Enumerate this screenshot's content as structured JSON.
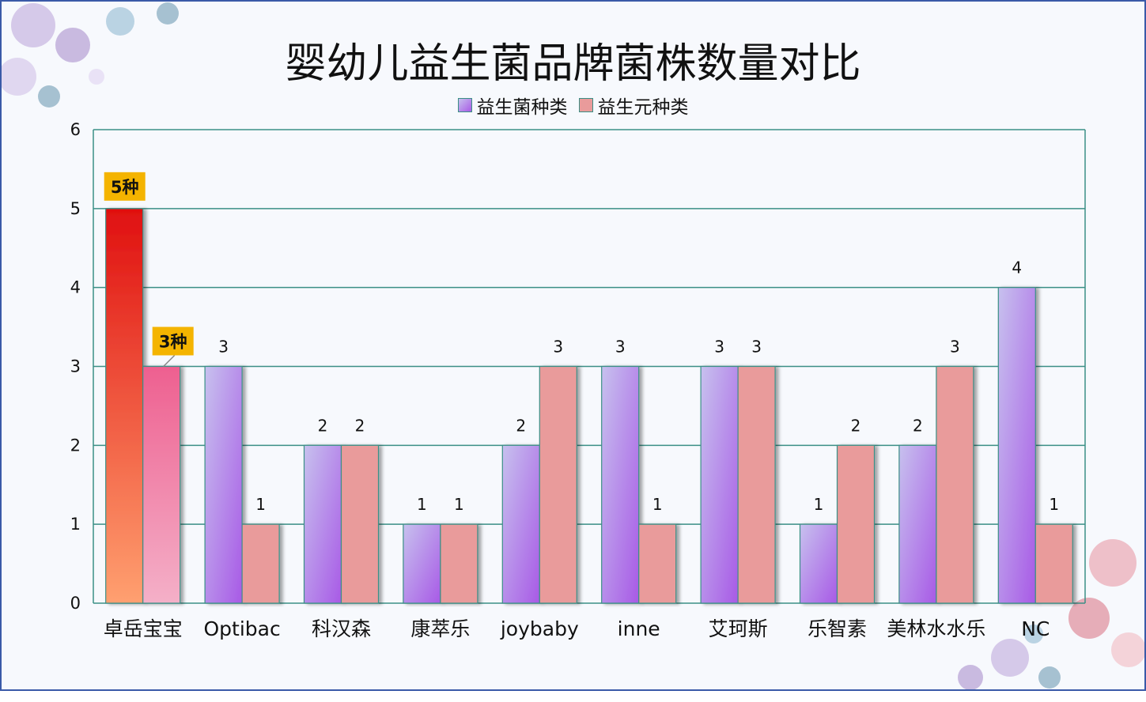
{
  "chart_data": {
    "type": "bar",
    "title": "婴幼儿益生菌品牌菌株数量对比",
    "categories": [
      "卓岳宝宝",
      "Optibac",
      "科汉森",
      "康萃乐",
      "joybaby",
      "inne",
      "艾珂斯",
      "乐智素",
      "美林水水乐",
      "NC"
    ],
    "series": [
      {
        "name": "益生菌种类",
        "values": [
          5,
          3,
          2,
          1,
          2,
          3,
          3,
          1,
          2,
          4
        ]
      },
      {
        "name": "益生元种类",
        "values": [
          3,
          1,
          2,
          1,
          3,
          1,
          3,
          2,
          3,
          1
        ]
      }
    ],
    "ylim": [
      0,
      6
    ],
    "yticks": [
      0,
      1,
      2,
      3,
      4,
      5,
      6
    ],
    "grid": true,
    "legend": "top-center",
    "callouts": [
      {
        "category_index": 0,
        "series_index": 0,
        "text": "5种"
      },
      {
        "category_index": 0,
        "series_index": 1,
        "text": "3种"
      }
    ],
    "colors": {
      "series0_gradient": [
        "#c7c1ee",
        "#a85ae6"
      ],
      "series1": "#e99b9b",
      "highlight0_gradient": [
        "#e01010",
        "#ffa070"
      ],
      "highlight1_gradient": [
        "#ee6090",
        "#f4b0c8"
      ],
      "gridline": "#3b8f86",
      "callout_bg": "#f4b400"
    }
  }
}
